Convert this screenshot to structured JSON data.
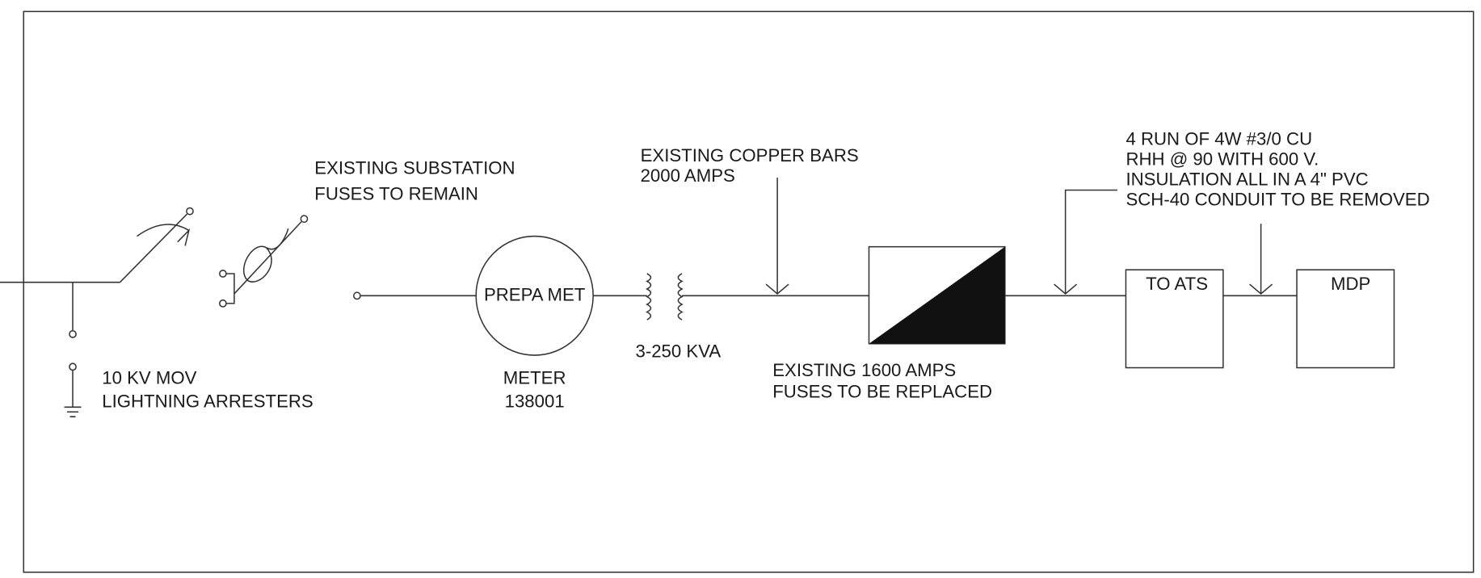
{
  "labels": {
    "substation_fuses": [
      "EXISTING SUBSTATION",
      "FUSES TO REMAIN"
    ],
    "copper_bars": [
      "EXISTING COPPER BARS",
      "2000 AMPS"
    ],
    "conduit": [
      "4 RUN OF 4W #3/0 CU",
      "RHH @ 90 WITH 600 V.",
      "INSULATION ALL IN A 4\" PVC",
      "SCH-40 CONDUIT TO BE REMOVED"
    ],
    "meter_symbol": "PREPA MET",
    "transformer": "3-250 KVA",
    "meter": [
      "METER",
      "138001"
    ],
    "arresters": [
      "10 KV MOV",
      "LIGHTNING ARRESTERS"
    ],
    "fuses_replaced": [
      "EXISTING 1600 AMPS",
      "FUSES TO BE REPLACED"
    ],
    "ats": "TO ATS",
    "mdp": "MDP"
  }
}
